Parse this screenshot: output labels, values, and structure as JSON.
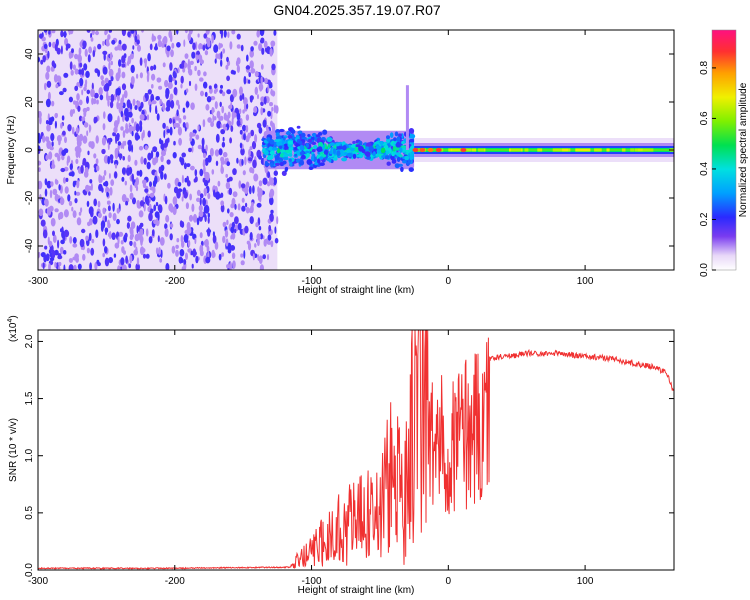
{
  "title": "GN04.2025.357.19.07.R07",
  "chart_data": [
    {
      "type": "heatmap",
      "xlabel": "Height of straight line (km)",
      "ylabel": "Frequency (Hz)",
      "xlim": [
        -300,
        165
      ],
      "ylim": [
        -50,
        50
      ],
      "xticks": [
        -300,
        -200,
        -100,
        0,
        100
      ],
      "yticks": [
        -40,
        -20,
        0,
        20,
        40
      ],
      "grid": false,
      "regions": [
        {
          "name": "noise",
          "x": [
            -300,
            -125
          ],
          "freq_range": [
            -50,
            50
          ],
          "amplitude": 0.15
        },
        {
          "name": "turbulent",
          "x": [
            -135,
            -25
          ],
          "freq_range": [
            -8,
            8
          ],
          "amplitude": 0.45
        },
        {
          "name": "tone",
          "x": [
            -25,
            165
          ],
          "freq_range": [
            -2,
            2
          ],
          "amplitude": 0.55
        }
      ],
      "colorbar": {
        "label": "Normalized spectral amplitude",
        "range": [
          0,
          0.95
        ],
        "ticks": [
          0.0,
          0.2,
          0.4,
          0.6,
          0.8
        ]
      }
    },
    {
      "type": "line",
      "xlabel": "Height of straight line (km)",
      "ylabel": "SNR (10 * v/v)",
      "y_multiplier": "(x10",
      "y_multiplier_exp": "4",
      "xlim": [
        -300,
        165
      ],
      "ylim": [
        0,
        2.1
      ],
      "xticks": [
        -300,
        -200,
        -100,
        0,
        100
      ],
      "yticks": [
        "0.0",
        "0.5",
        "1.0",
        "1.5",
        "2.0"
      ],
      "grid": false,
      "series": [
        {
          "color": "#f03030",
          "x": [
            -300,
            -200,
            -115,
            -110,
            -100,
            -90,
            -80,
            -70,
            -60,
            -50,
            -45,
            -40,
            -35,
            -30,
            -25,
            -20,
            -18,
            -15,
            -10,
            -5,
            0,
            5,
            10,
            15,
            20,
            25,
            30,
            40,
            50,
            60,
            70,
            80,
            90,
            100,
            110,
            120,
            130,
            140,
            150,
            160,
            165
          ],
          "y": [
            0.01,
            0.01,
            0.02,
            0.08,
            0.15,
            0.25,
            0.35,
            0.4,
            0.45,
            0.5,
            0.7,
            0.8,
            0.6,
            1.0,
            1.2,
            1.6,
            2.05,
            1.5,
            1.5,
            1.5,
            1.55,
            1.6,
            1.65,
            1.7,
            1.75,
            1.8,
            1.85,
            1.87,
            1.88,
            1.9,
            1.89,
            1.9,
            1.88,
            1.87,
            1.86,
            1.85,
            1.82,
            1.8,
            1.78,
            1.72,
            1.55
          ]
        }
      ]
    }
  ]
}
